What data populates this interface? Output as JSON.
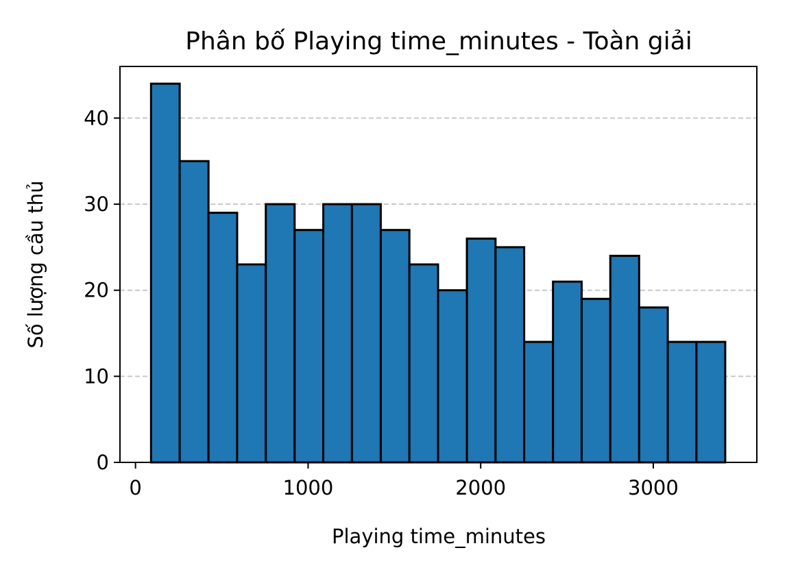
{
  "chart_data": {
    "type": "bar",
    "title": "Phân bố Playing time_minutes - Toàn giải",
    "xlabel": "Playing time_minutes",
    "ylabel": "Số lượng cầu thủ",
    "xlim": [
      -90,
      3600
    ],
    "ylim": [
      0,
      46
    ],
    "xticks": [
      0,
      1000,
      2000,
      3000
    ],
    "yticks": [
      0,
      10,
      20,
      30,
      40
    ],
    "grid": "y-dashed",
    "colors": {
      "bar": "#1f77b4",
      "edge": "#000000",
      "grid": "#c8c8c8"
    },
    "bin_edges": [
      90,
      256,
      423,
      589,
      755,
      922,
      1088,
      1254,
      1421,
      1587,
      1753,
      1920,
      2086,
      2252,
      2419,
      2585,
      2751,
      2918,
      3084,
      3250,
      3417
    ],
    "values": [
      44,
      35,
      29,
      23,
      30,
      27,
      30,
      30,
      27,
      23,
      20,
      26,
      25,
      14,
      21,
      19,
      24,
      18,
      14,
      14
    ]
  }
}
